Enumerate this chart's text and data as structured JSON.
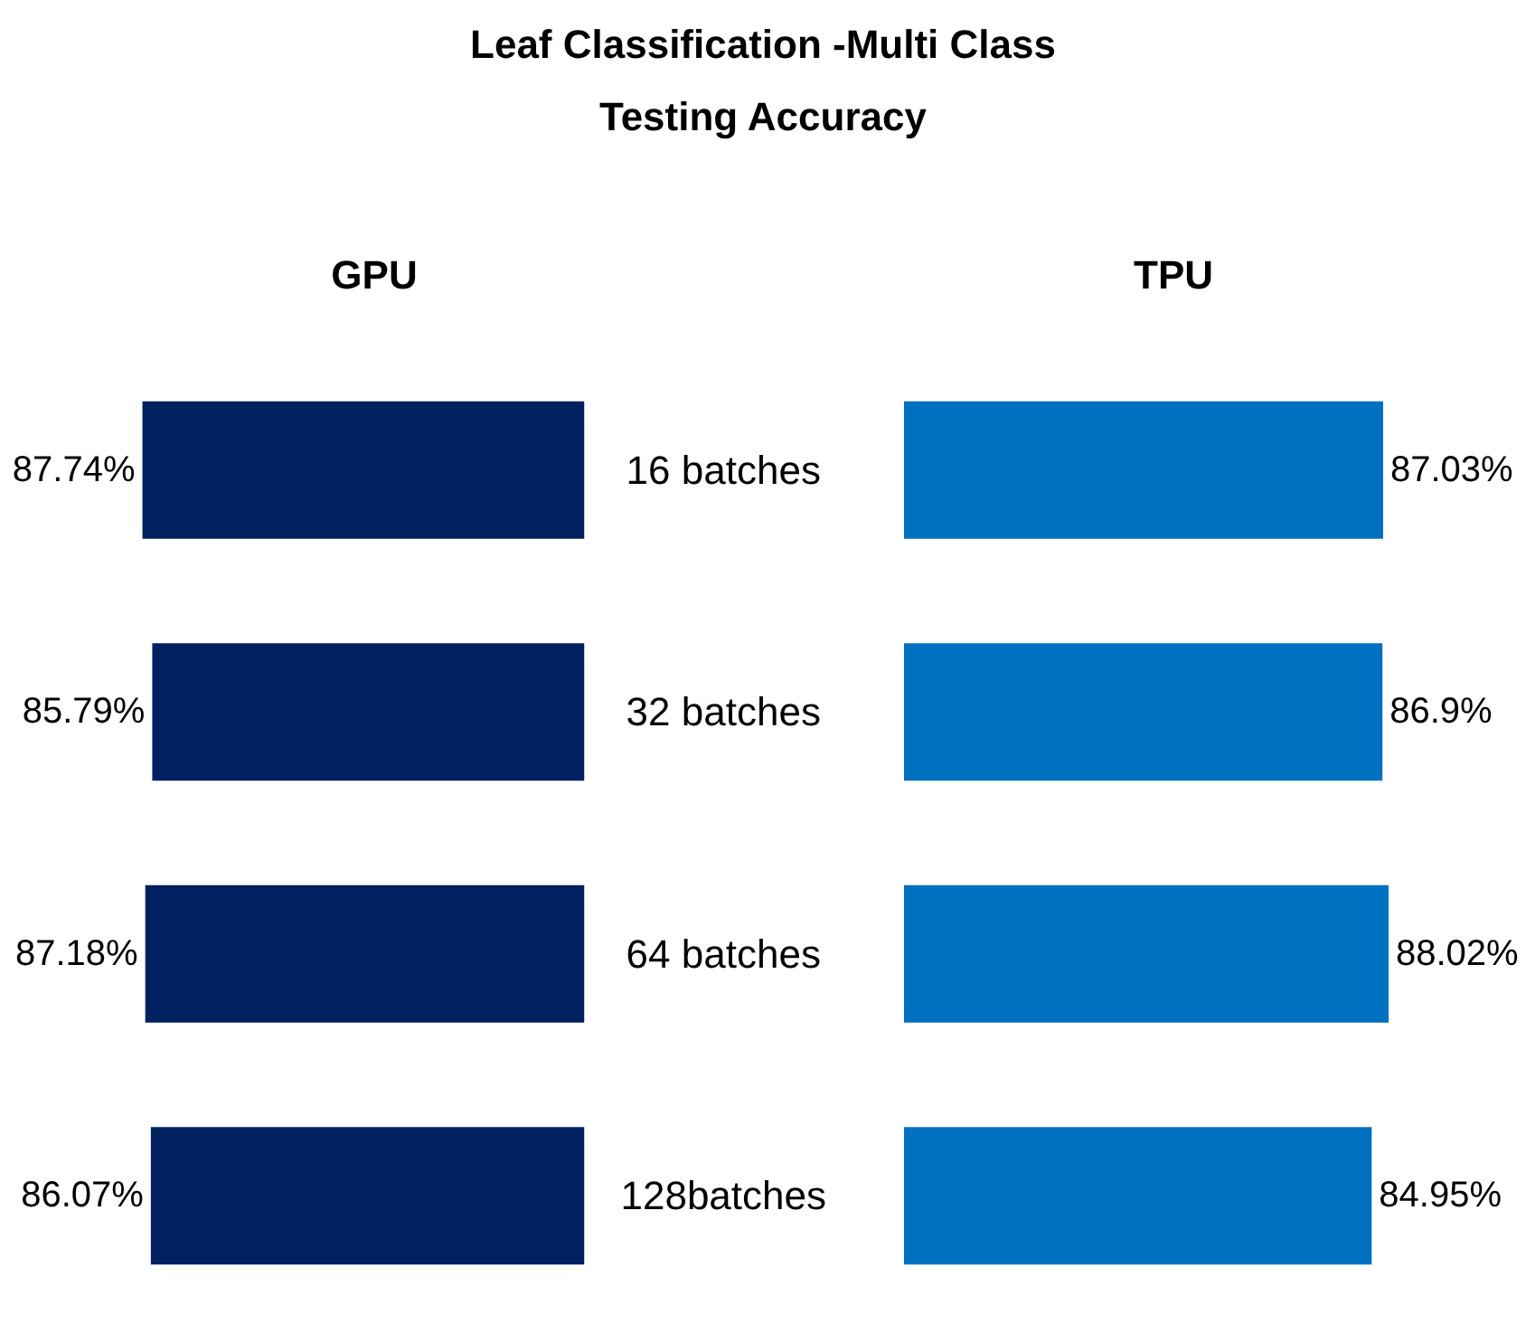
{
  "chart_data": [
    {
      "type": "bar",
      "orientation": "horizontal",
      "title": "Leaf Classification -Multi Class",
      "subtitle": "Testing Accuracy",
      "categories": [
        "16 batches",
        "32 batches",
        "64 batches",
        "128batches"
      ],
      "series": [
        {
          "name": "GPU",
          "color": "#002060",
          "values": [
            87.74,
            85.79,
            87.18,
            86.07
          ],
          "value_labels": [
            "87.74%",
            "85.79%",
            "87.18%",
            "86.07%"
          ]
        }
      ]
    },
    {
      "type": "bar",
      "orientation": "horizontal",
      "categories": [
        null,
        null,
        null,
        null
      ],
      "series": [
        {
          "name": "TPU",
          "color": "#0070c0",
          "values": [
            87.03,
            86.9,
            88.02,
            84.95
          ],
          "value_labels": [
            "87.03%",
            "86.9%",
            "88.02%",
            "84.95%"
          ]
        }
      ]
    }
  ]
}
